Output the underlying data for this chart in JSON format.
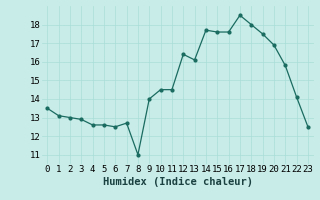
{
  "x": [
    0,
    1,
    2,
    3,
    4,
    5,
    6,
    7,
    8,
    9,
    10,
    11,
    12,
    13,
    14,
    15,
    16,
    17,
    18,
    19,
    20,
    21,
    22,
    23
  ],
  "y": [
    13.5,
    13.1,
    13.0,
    12.9,
    12.6,
    12.6,
    12.5,
    12.7,
    11.0,
    14.0,
    14.5,
    14.5,
    16.4,
    16.1,
    17.7,
    17.6,
    17.6,
    18.5,
    18.0,
    17.5,
    16.9,
    15.8,
    14.1,
    12.5
  ],
  "xlabel": "Humidex (Indice chaleur)",
  "ylim": [
    10.5,
    19.0
  ],
  "xlim": [
    -0.5,
    23.5
  ],
  "yticks": [
    11,
    12,
    13,
    14,
    15,
    16,
    17,
    18
  ],
  "xtick_labels": [
    "0",
    "1",
    "2",
    "3",
    "4",
    "5",
    "6",
    "7",
    "8",
    "9",
    "10",
    "11",
    "12",
    "13",
    "14",
    "15",
    "16",
    "17",
    "18",
    "19",
    "20",
    "21",
    "22",
    "23"
  ],
  "bg_color": "#c8ece8",
  "line_color": "#1a6b60",
  "grid_color": "#aaddd8",
  "xlabel_fontsize": 7.5,
  "tick_fontsize": 6.5
}
